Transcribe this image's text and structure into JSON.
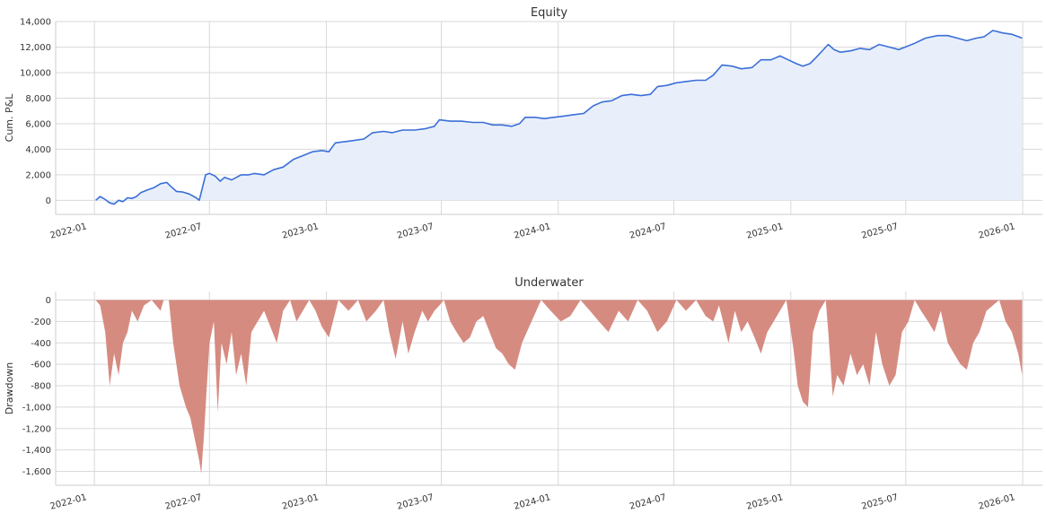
{
  "chart_data": [
    {
      "type": "area",
      "title": "Equity",
      "xlabel": "",
      "ylabel": "Cum. P&L",
      "ylim": [
        -1100,
        14000
      ],
      "xlim": [
        "2021-11-01",
        "2026-02-01"
      ],
      "grid": true,
      "x_ticks": [
        "2022-01",
        "2022-07",
        "2023-01",
        "2023-07",
        "2024-01",
        "2024-07",
        "2025-01",
        "2025-07",
        "2026-01"
      ],
      "y_ticks": [
        0,
        2000,
        4000,
        6000,
        8000,
        10000,
        12000,
        14000
      ],
      "y_tick_labels": [
        "0",
        "2,000",
        "4,000",
        "6,000",
        "8,000",
        "10,000",
        "12,000",
        "14,000"
      ],
      "line_color": "#3a6fd8",
      "fill_color": "#e9effa",
      "series": [
        {
          "x": [
            "2022-01-03",
            "2022-01-10",
            "2022-01-17",
            "2022-01-25",
            "2022-02-01",
            "2022-02-08",
            "2022-02-15",
            "2022-02-22",
            "2022-03-01",
            "2022-03-08",
            "2022-03-15",
            "2022-03-25",
            "2022-04-05",
            "2022-04-15",
            "2022-04-25",
            "2022-05-01",
            "2022-05-10",
            "2022-05-20",
            "2022-05-30",
            "2022-06-10",
            "2022-06-15",
            "2022-06-20",
            "2022-06-25",
            "2022-07-01",
            "2022-07-10",
            "2022-07-18",
            "2022-07-25",
            "2022-08-05",
            "2022-08-20",
            "2022-09-01",
            "2022-09-10",
            "2022-09-25",
            "2022-10-10",
            "2022-10-25",
            "2022-11-10",
            "2022-11-25",
            "2022-12-10",
            "2022-12-25",
            "2023-01-05",
            "2023-01-15",
            "2023-02-01",
            "2023-02-15",
            "2023-03-01",
            "2023-03-15",
            "2023-04-01",
            "2023-04-15",
            "2023-05-01",
            "2023-05-20",
            "2023-06-05",
            "2023-06-20",
            "2023-06-28",
            "2023-07-15",
            "2023-08-01",
            "2023-08-20",
            "2023-09-05",
            "2023-09-20",
            "2023-10-05",
            "2023-10-20",
            "2023-11-01",
            "2023-11-10",
            "2023-11-25",
            "2023-12-10",
            "2023-12-25",
            "2024-01-10",
            "2024-01-25",
            "2024-02-10",
            "2024-02-25",
            "2024-03-10",
            "2024-03-25",
            "2024-04-10",
            "2024-04-25",
            "2024-05-10",
            "2024-05-25",
            "2024-06-05",
            "2024-06-20",
            "2024-07-05",
            "2024-07-20",
            "2024-08-05",
            "2024-08-20",
            "2024-09-01",
            "2024-09-15",
            "2024-10-01",
            "2024-10-15",
            "2024-11-01",
            "2024-11-15",
            "2024-12-01",
            "2024-12-15",
            "2024-12-28",
            "2025-01-10",
            "2025-01-20",
            "2025-01-31",
            "2025-02-10",
            "2025-02-25",
            "2025-03-01",
            "2025-03-10",
            "2025-03-20",
            "2025-04-05",
            "2025-04-20",
            "2025-05-05",
            "2025-05-20",
            "2025-06-05",
            "2025-06-20",
            "2025-07-05",
            "2025-07-15",
            "2025-08-01",
            "2025-08-20",
            "2025-09-05",
            "2025-09-20",
            "2025-10-05",
            "2025-10-20",
            "2025-11-01",
            "2025-11-15",
            "2025-12-01",
            "2025-12-15",
            "2025-12-31"
          ],
          "values": [
            0,
            300,
            100,
            -200,
            -300,
            0,
            -100,
            200,
            150,
            300,
            600,
            800,
            1000,
            1300,
            1400,
            1100,
            700,
            650,
            500,
            200,
            0,
            1000,
            2000,
            2100,
            1900,
            1500,
            1800,
            1600,
            2000,
            2000,
            2100,
            2000,
            2400,
            2600,
            3200,
            3500,
            3800,
            3900,
            3800,
            4500,
            4600,
            4700,
            4800,
            5300,
            5400,
            5300,
            5500,
            5500,
            5600,
            5800,
            6300,
            6200,
            6200,
            6100,
            6100,
            5900,
            5900,
            5800,
            6000,
            6500,
            6500,
            6400,
            6500,
            6600,
            6700,
            6800,
            7400,
            7700,
            7800,
            8200,
            8300,
            8200,
            8300,
            8900,
            9000,
            9200,
            9300,
            9400,
            9400,
            9800,
            10600,
            10500,
            10300,
            10400,
            11000,
            11000,
            11300,
            11000,
            10700,
            10500,
            10700,
            11200,
            12000,
            12200,
            11800,
            11600,
            11700,
            11900,
            11800,
            12200,
            12000,
            11800,
            12100,
            12300,
            12700,
            12900,
            12900,
            12700,
            12500,
            12700,
            12800,
            13300,
            13100,
            13000,
            12700
          ]
        }
      ]
    },
    {
      "type": "area",
      "title": "Underwater",
      "xlabel": "",
      "ylabel": "Drawdown",
      "ylim": [
        -1730,
        80
      ],
      "xlim": [
        "2021-11-01",
        "2026-02-01"
      ],
      "grid": true,
      "x_ticks": [
        "2022-01",
        "2022-07",
        "2023-01",
        "2023-07",
        "2024-01",
        "2024-07",
        "2025-01",
        "2025-07",
        "2026-01"
      ],
      "y_ticks": [
        0,
        -200,
        -400,
        -600,
        -800,
        -1000,
        -1200,
        -1400,
        -1600
      ],
      "y_tick_labels": [
        "0",
        "-200",
        "-400",
        "-600",
        "-800",
        "-1,000",
        "-1,200",
        "-1,400",
        "-1,600"
      ],
      "fill_color": "#d4857a",
      "series": [
        {
          "x": [
            "2022-01-03",
            "2022-01-10",
            "2022-01-18",
            "2022-01-25",
            "2022-02-01",
            "2022-02-08",
            "2022-02-15",
            "2022-02-22",
            "2022-03-01",
            "2022-03-10",
            "2022-03-20",
            "2022-04-01",
            "2022-04-15",
            "2022-04-20",
            "2022-04-28",
            "2022-05-05",
            "2022-05-15",
            "2022-05-25",
            "2022-06-01",
            "2022-06-08",
            "2022-06-15",
            "2022-06-18",
            "2022-06-22",
            "2022-06-26",
            "2022-07-01",
            "2022-07-08",
            "2022-07-14",
            "2022-07-20",
            "2022-07-28",
            "2022-08-05",
            "2022-08-12",
            "2022-08-20",
            "2022-08-28",
            "2022-09-05",
            "2022-09-15",
            "2022-09-25",
            "2022-10-05",
            "2022-10-15",
            "2022-10-25",
            "2022-11-05",
            "2022-11-15",
            "2022-11-25",
            "2022-12-05",
            "2022-12-15",
            "2022-12-25",
            "2023-01-05",
            "2023-01-20",
            "2023-02-05",
            "2023-02-20",
            "2023-03-05",
            "2023-03-20",
            "2023-04-01",
            "2023-04-10",
            "2023-04-20",
            "2023-05-01",
            "2023-05-10",
            "2023-05-20",
            "2023-06-01",
            "2023-06-10",
            "2023-06-20",
            "2023-06-28",
            "2023-07-05",
            "2023-07-15",
            "2023-07-25",
            "2023-08-05",
            "2023-08-15",
            "2023-08-25",
            "2023-09-05",
            "2023-09-15",
            "2023-09-25",
            "2023-10-05",
            "2023-10-15",
            "2023-10-25",
            "2023-11-05",
            "2023-11-20",
            "2023-12-05",
            "2023-12-20",
            "2024-01-05",
            "2024-01-20",
            "2024-02-05",
            "2024-02-20",
            "2024-03-05",
            "2024-03-20",
            "2024-04-05",
            "2024-04-20",
            "2024-05-05",
            "2024-05-20",
            "2024-06-05",
            "2024-06-20",
            "2024-07-05",
            "2024-07-20",
            "2024-08-05",
            "2024-08-20",
            "2024-09-01",
            "2024-09-10",
            "2024-09-25",
            "2024-10-05",
            "2024-10-15",
            "2024-10-25",
            "2024-11-05",
            "2024-11-15",
            "2024-11-25",
            "2024-12-05",
            "2024-12-15",
            "2024-12-25",
            "2025-01-05",
            "2025-01-12",
            "2025-01-20",
            "2025-01-28",
            "2025-02-05",
            "2025-02-15",
            "2025-02-25",
            "2025-03-01",
            "2025-03-08",
            "2025-03-15",
            "2025-03-25",
            "2025-04-05",
            "2025-04-15",
            "2025-04-25",
            "2025-05-05",
            "2025-05-15",
            "2025-05-25",
            "2025-06-05",
            "2025-06-15",
            "2025-06-25",
            "2025-07-05",
            "2025-07-15",
            "2025-07-25",
            "2025-08-05",
            "2025-08-15",
            "2025-08-25",
            "2025-09-05",
            "2025-09-15",
            "2025-09-25",
            "2025-10-05",
            "2025-10-15",
            "2025-10-25",
            "2025-11-05",
            "2025-11-15",
            "2025-11-25",
            "2025-12-05",
            "2025-12-15",
            "2025-12-25",
            "2025-12-31"
          ],
          "values": [
            0,
            -50,
            -300,
            -800,
            -500,
            -700,
            -400,
            -300,
            -100,
            -200,
            -50,
            0,
            -100,
            0,
            0,
            -400,
            -800,
            -1000,
            -1100,
            -1300,
            -1500,
            -1620,
            -1300,
            -900,
            -400,
            -200,
            -1050,
            -400,
            -600,
            -300,
            -700,
            -500,
            -800,
            -300,
            -200,
            -100,
            -250,
            -400,
            -100,
            0,
            -200,
            -100,
            0,
            -100,
            -250,
            -350,
            0,
            -100,
            0,
            -200,
            -100,
            0,
            -300,
            -550,
            -200,
            -500,
            -300,
            -100,
            -200,
            -100,
            -50,
            0,
            -200,
            -300,
            -400,
            -350,
            -200,
            -150,
            -300,
            -450,
            -500,
            -600,
            -650,
            -400,
            -200,
            0,
            -100,
            -200,
            -150,
            0,
            -100,
            -200,
            -300,
            -100,
            -200,
            0,
            -100,
            -300,
            -200,
            0,
            -100,
            0,
            -150,
            -200,
            -50,
            -400,
            -100,
            -300,
            -200,
            -350,
            -500,
            -300,
            -200,
            -100,
            0,
            -450,
            -800,
            -950,
            -1000,
            -300,
            -100,
            0,
            -300,
            -900,
            -700,
            -800,
            -500,
            -700,
            -600,
            -800,
            -300,
            -600,
            -800,
            -700,
            -300,
            -200,
            0,
            -100,
            -200,
            -300,
            -100,
            -400,
            -500,
            -600,
            -650,
            -400,
            -300,
            -100,
            -50,
            0,
            -200,
            -300,
            -500,
            -700
          ]
        }
      ]
    }
  ]
}
